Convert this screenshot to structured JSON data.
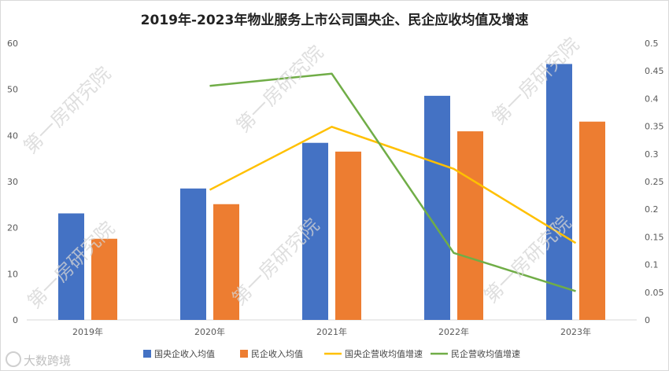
{
  "chart_data": {
    "type": "bar-line-combo",
    "title": "2019年-2023年物业服务上市公司国央企、民企应收均值及增速",
    "categories": [
      "2019年",
      "2020年",
      "2021年",
      "2022年",
      "2023年"
    ],
    "y_left": {
      "range": [
        0,
        60
      ],
      "ticks": [
        "0",
        "10",
        "20",
        "30",
        "40",
        "50",
        "60"
      ]
    },
    "y_right": {
      "range": [
        0,
        0.5
      ],
      "ticks": [
        "0",
        "0.05",
        "0.1",
        "0.15",
        "0.2",
        "0.25",
        "0.3",
        "0.35",
        "0.4",
        "0.45",
        "0.5"
      ]
    },
    "series": [
      {
        "name": "国央企收入均值",
        "kind": "bar",
        "axis": "left",
        "color": "#4472C4",
        "values": [
          23.1,
          28.5,
          38.4,
          48.6,
          55.5
        ]
      },
      {
        "name": "民企收入均值",
        "kind": "bar",
        "axis": "left",
        "color": "#ED7D31",
        "values": [
          17.6,
          25.1,
          36.5,
          40.9,
          43.0
        ]
      },
      {
        "name": "国央企营收均值增速",
        "kind": "line",
        "axis": "right",
        "color": "#FFC000",
        "values": [
          null,
          0.235,
          0.349,
          0.273,
          0.139
        ]
      },
      {
        "name": "民企营收均值增速",
        "kind": "line",
        "axis": "right",
        "color": "#70AD47",
        "values": [
          null,
          0.423,
          0.445,
          0.121,
          0.052
        ]
      }
    ],
    "grid": false,
    "legend_position": "bottom"
  },
  "watermark": "第一房研究院",
  "brand": "大数跨境",
  "brand_icon": "watermark-logo-icon"
}
